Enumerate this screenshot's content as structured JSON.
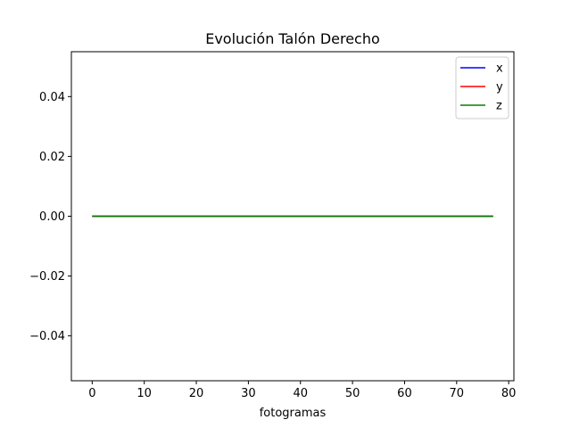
{
  "chart_data": {
    "type": "line",
    "title": "Evolución Talón Derecho",
    "xlabel": "fotogramas",
    "ylabel": "",
    "xlim": [
      -4,
      81
    ],
    "ylim": [
      -0.055,
      0.055
    ],
    "xticks": [
      0,
      10,
      20,
      30,
      40,
      50,
      60,
      70,
      80
    ],
    "xtick_labels": [
      "0",
      "10",
      "20",
      "30",
      "40",
      "50",
      "60",
      "70",
      "80"
    ],
    "yticks": [
      0.04,
      0.02,
      0.0,
      -0.02,
      -0.04
    ],
    "ytick_labels": [
      "0.04",
      "0.02",
      "0.00",
      "−0.02",
      "−0.04"
    ],
    "grid": false,
    "legend_position": "top-right",
    "series": [
      {
        "name": "x",
        "color": "#0000ff",
        "x_range": [
          0,
          77
        ],
        "y_constant": 0
      },
      {
        "name": "y",
        "color": "#ff0000",
        "x_range": [
          0,
          77
        ],
        "y_constant": 0
      },
      {
        "name": "z",
        "color": "#008000",
        "x_range": [
          0,
          77
        ],
        "y_constant": 0
      }
    ]
  }
}
